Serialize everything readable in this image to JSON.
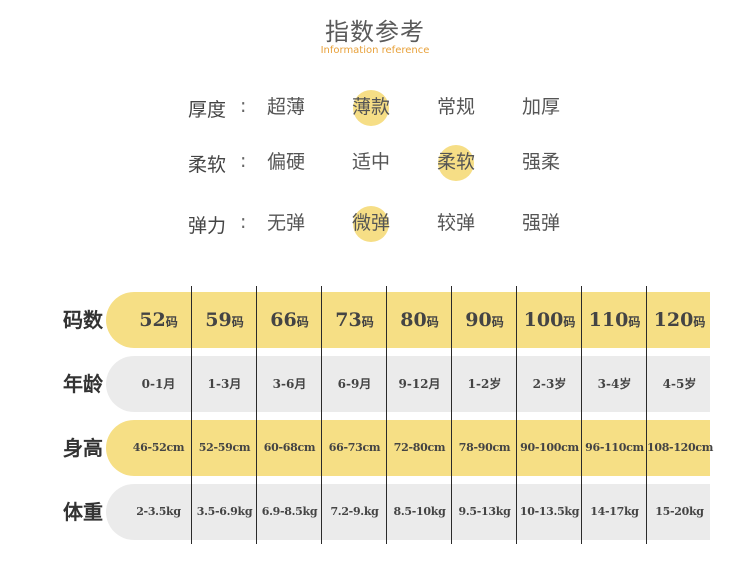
{
  "header": {
    "title": "指数参考",
    "subtitle": "Information reference"
  },
  "params": [
    {
      "label": "厚度",
      "colon": ":",
      "options": [
        "超薄",
        "薄款",
        "常规",
        "加厚"
      ],
      "selected": 1
    },
    {
      "label": "柔软",
      "colon": ":",
      "options": [
        "偏硬",
        "适中",
        "柔软",
        "强柔"
      ],
      "selected": 2
    },
    {
      "label": "弹力",
      "colon": ":",
      "options": [
        "无弹",
        "微弹",
        "较弹",
        "强弹"
      ],
      "selected": 1
    }
  ],
  "table": {
    "rows": [
      {
        "label": "码数",
        "cells": [
          {
            "num": "52",
            "unit": "码"
          },
          {
            "num": "59",
            "unit": "码"
          },
          {
            "num": "66",
            "unit": "码"
          },
          {
            "num": "73",
            "unit": "码"
          },
          {
            "num": "80",
            "unit": "码"
          },
          {
            "num": "90",
            "unit": "码"
          },
          {
            "num": "100",
            "unit": "码"
          },
          {
            "num": "110",
            "unit": "码"
          },
          {
            "num": "120",
            "unit": "码"
          }
        ]
      },
      {
        "label": "年龄",
        "cells": [
          "0-1月",
          "1-3月",
          "3-6月",
          "6-9月",
          "9-12月",
          "1-2岁",
          "2-3岁",
          "3-4岁",
          "4-5岁"
        ]
      },
      {
        "label": "身高",
        "cells": [
          "46-52cm",
          "52-59cm",
          "60-68cm",
          "66-73cm",
          "72-80cm",
          "78-90cm",
          "90-100cm",
          "96-110cm",
          "108-120cm"
        ]
      },
      {
        "label": "体重",
        "cells": [
          "2-3.5kg",
          "3.5-6.9kg",
          "6.9-8.5kg",
          "7.2-9.kg",
          "8.5-10kg",
          "9.5-13kg",
          "10-13.5kg",
          "14-17kg",
          "15-20kg"
        ]
      }
    ]
  },
  "colors": {
    "highlight": "#f6de86",
    "yellowRow": "#f6df85",
    "grayRow": "#ebebeb",
    "subtitle": "#e8a13a"
  }
}
